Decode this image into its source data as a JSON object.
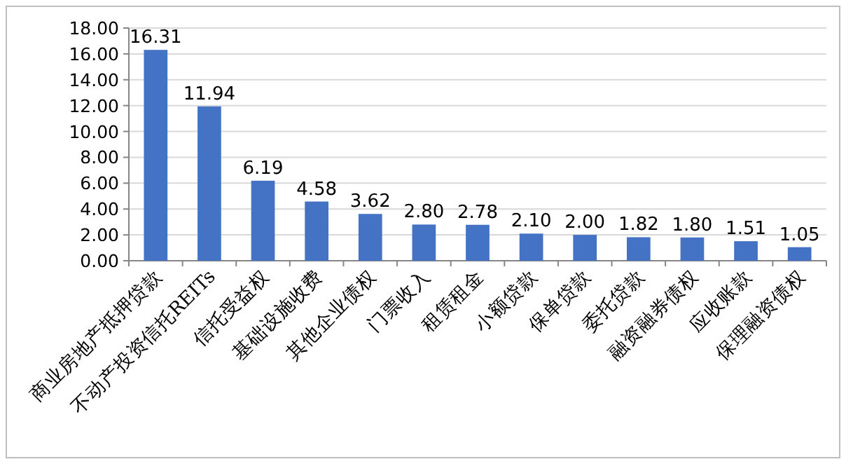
{
  "chart_data": {
    "type": "bar",
    "categories": [
      "商业房地产抵押贷款",
      "不动产投资信托REITs",
      "信托受益权",
      "基础设施收费",
      "其他企业债权",
      "门票收入",
      "租赁租金",
      "小额贷款",
      "保单贷款",
      "委托贷款",
      "融资融券债权",
      "应收账款",
      "保理融资债权"
    ],
    "values": [
      16.31,
      11.94,
      6.19,
      4.58,
      3.62,
      2.8,
      2.78,
      2.1,
      2.0,
      1.82,
      1.8,
      1.51,
      1.05
    ],
    "value_labels": [
      "16.31",
      "11.94",
      "6.19",
      "4.58",
      "3.62",
      "2.80",
      "2.78",
      "2.10",
      "2.00",
      "1.82",
      "1.80",
      "1.51",
      "1.05"
    ],
    "color": "#4472c4",
    "ylim": [
      0,
      18
    ],
    "yticks": [
      {
        "value": 0,
        "label": "0.00"
      },
      {
        "value": 2,
        "label": "2.00"
      },
      {
        "value": 4,
        "label": "4.00"
      },
      {
        "value": 6,
        "label": "6.00"
      },
      {
        "value": 8,
        "label": "8.00"
      },
      {
        "value": 10,
        "label": "10.00"
      },
      {
        "value": 12,
        "label": "12.00"
      },
      {
        "value": 14,
        "label": "14.00"
      },
      {
        "value": 16,
        "label": "16.00"
      },
      {
        "value": 18,
        "label": "18.00"
      }
    ],
    "grid": "y"
  }
}
